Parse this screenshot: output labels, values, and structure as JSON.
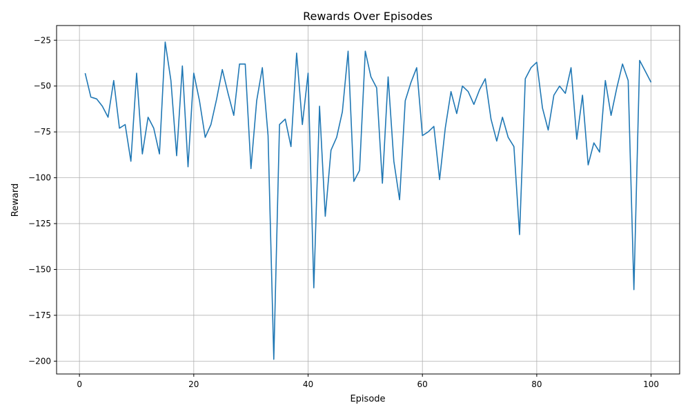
{
  "chart_data": {
    "type": "line",
    "title": "Rewards Over Episodes",
    "xlabel": "Episode",
    "ylabel": "Reward",
    "xlim": [
      -4,
      105
    ],
    "ylim": [
      -207,
      -17
    ],
    "xticks": [
      0,
      20,
      40,
      60,
      80,
      100
    ],
    "yticks": [
      -200,
      -175,
      -150,
      -125,
      -100,
      -75,
      -50,
      -25
    ],
    "xtick_labels": [
      "0",
      "20",
      "40",
      "60",
      "80",
      "100"
    ],
    "ytick_labels": [
      "−200",
      "−175",
      "−150",
      "−125",
      "−100",
      "−75",
      "−50",
      "−25"
    ],
    "grid": true,
    "line_color": "#1f77b4",
    "series": [
      {
        "x": [
          1,
          2,
          3,
          4,
          5,
          6,
          7,
          8,
          9,
          10,
          11,
          12,
          13,
          14,
          15,
          16,
          17,
          18,
          19,
          20,
          21,
          22,
          23,
          24,
          25,
          26,
          27,
          28,
          29,
          30,
          31,
          32,
          33,
          34,
          35,
          36,
          37,
          38,
          39,
          40,
          41,
          42,
          43,
          44,
          45,
          46,
          47,
          48,
          49,
          50,
          51,
          52,
          53,
          54,
          55,
          56,
          57,
          58,
          59,
          60,
          61,
          62,
          63,
          64,
          65,
          66,
          67,
          68,
          69,
          70,
          71,
          72,
          73,
          74,
          75,
          76,
          77,
          78,
          79,
          80,
          81,
          82,
          83,
          84,
          85,
          86,
          87,
          88,
          89,
          90,
          91,
          92,
          93,
          94,
          95,
          96,
          97,
          98,
          99,
          100
        ],
        "values": [
          -43,
          -56,
          -57,
          -61,
          -67,
          -47,
          -73,
          -71,
          -91,
          -43,
          -87,
          -67,
          -73,
          -87,
          -26,
          -47,
          -88,
          -39,
          -94,
          -43,
          -58,
          -78,
          -71,
          -57,
          -41,
          -54,
          -66,
          -38,
          -38,
          -95,
          -58,
          -40,
          -77,
          -199,
          -71,
          -68,
          -83,
          -32,
          -71,
          -43,
          -160,
          -61,
          -121,
          -85,
          -78,
          -64,
          -31,
          -102,
          -96,
          -31,
          -45,
          -51,
          -103,
          -45,
          -91,
          -112,
          -58,
          -48,
          -40,
          -77,
          -75,
          -72,
          -101,
          -73,
          -53,
          -65,
          -50,
          -53,
          -60,
          -52,
          -46,
          -68,
          -80,
          -67,
          -78,
          -83,
          -131,
          -46,
          -40,
          -37,
          -62,
          -74,
          -55,
          -50,
          -54,
          -40,
          -79,
          -55,
          -93,
          -81,
          -86,
          -47,
          -66,
          -51,
          -38,
          -47,
          -161,
          -36,
          -42,
          -48
        ]
      }
    ]
  }
}
